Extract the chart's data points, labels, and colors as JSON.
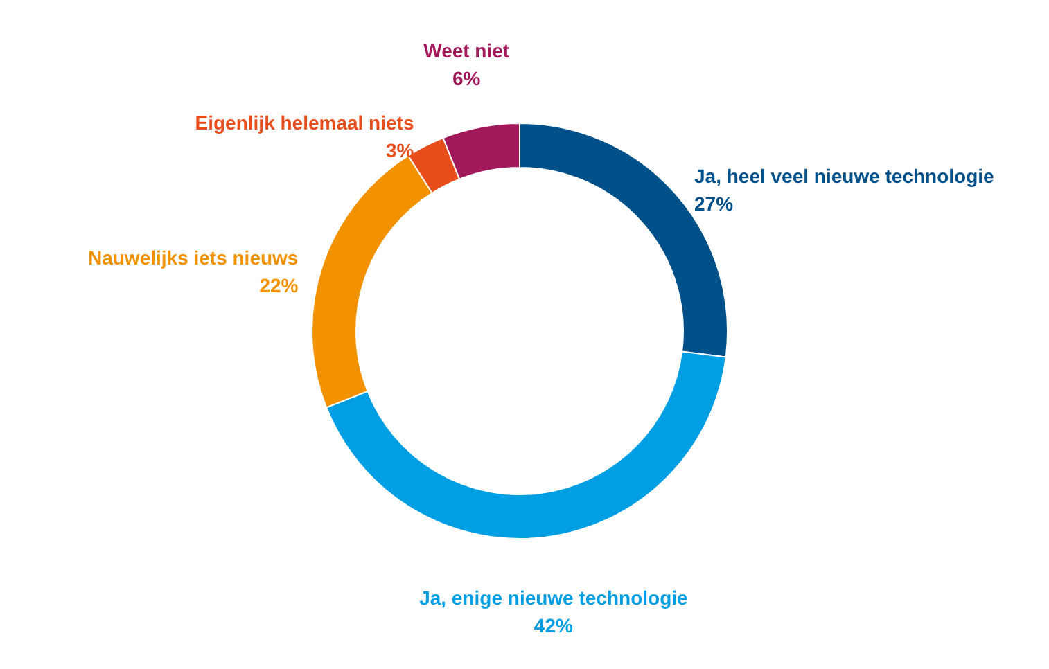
{
  "chart_data": {
    "type": "donut",
    "categories": [
      "Ja, heel veel nieuwe technologie",
      "Ja, enige nieuwe technologie",
      "Nauwelijks iets nieuws",
      "Eigenlijk helemaal niets",
      "Weet niet"
    ],
    "values": [
      27,
      42,
      22,
      3,
      6
    ],
    "colors": [
      "#00508a",
      "#009fe3",
      "#f39200",
      "#e84e1b",
      "#a2195b"
    ],
    "value_labels": [
      "27%",
      "42%",
      "22%",
      "3%",
      "6%"
    ],
    "legend": false
  }
}
